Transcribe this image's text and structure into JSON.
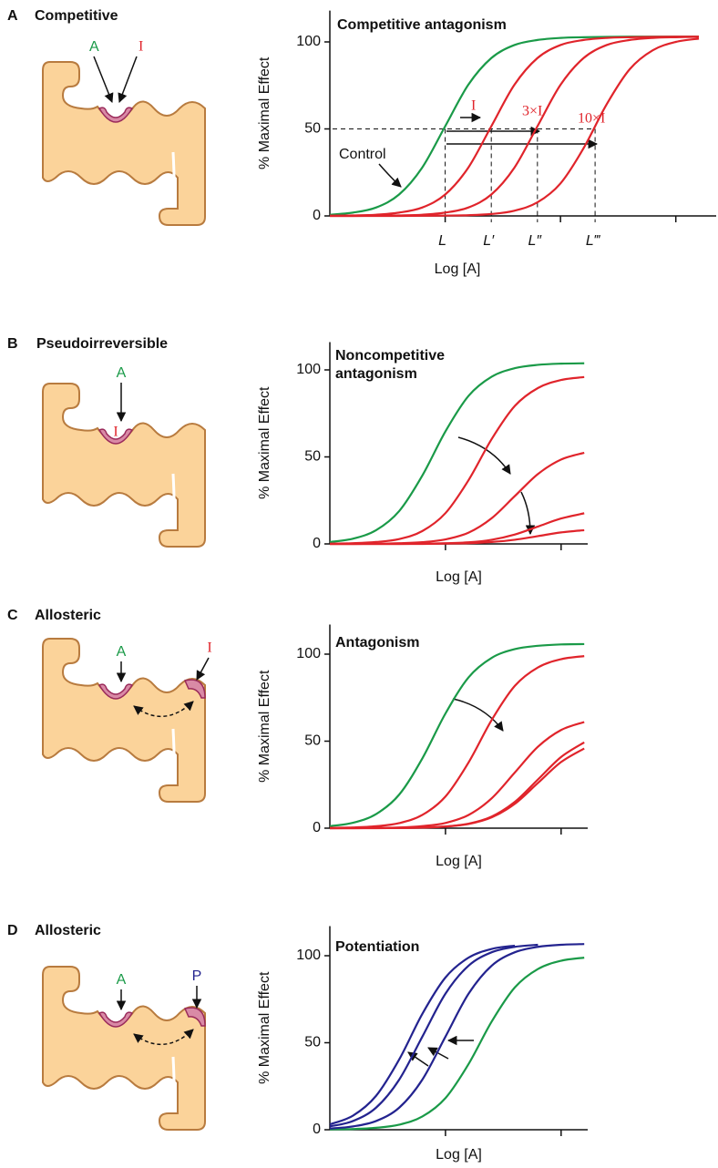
{
  "panels": [
    {
      "letter": "A",
      "title": "Competitive",
      "labels": [
        "A",
        "I"
      ]
    },
    {
      "letter": "B",
      "title": "Pseudoirreversible",
      "labels": [
        "A",
        "I"
      ]
    },
    {
      "letter": "C",
      "title": "Allosteric",
      "labels": [
        "A",
        "I"
      ]
    },
    {
      "letter": "D",
      "title": "Allosteric",
      "labels": [
        "A",
        "P"
      ]
    }
  ],
  "chart_data": [
    {
      "type": "line",
      "title": [
        "Competitive antagonism"
      ],
      "ylabel": "% Maximal Effect",
      "xlabel": "Log [A]",
      "x": [
        0,
        0.2,
        0.4,
        0.6,
        0.8,
        1.0,
        1.2,
        1.4,
        1.6,
        1.8,
        2.0,
        2.2,
        2.4,
        2.6,
        2.8,
        3.0,
        3.2
      ],
      "xlim": [
        0,
        3.35
      ],
      "xtick_marks": [
        1,
        2,
        3
      ],
      "ylim": [
        0,
        118
      ],
      "yticks": [
        0,
        50,
        100
      ],
      "series": [
        {
          "color": "#1a9a48",
          "values": [
            0.7,
            1.9,
            4.8,
            12.3,
            27.7,
            51.5,
            75.3,
            90.7,
            98.2,
            101.1,
            102.3,
            102.7,
            102.9,
            103,
            103,
            103,
            103
          ]
        },
        {
          "color": "#e0242b",
          "values": [
            0.1,
            0.3,
            0.7,
            1.9,
            4.8,
            12.3,
            27.7,
            51.5,
            75.3,
            90.7,
            98.2,
            101.1,
            102.3,
            102.7,
            102.9,
            103,
            103
          ]
        },
        {
          "color": "#e0242b",
          "values": [
            0,
            0,
            0.1,
            0.3,
            0.7,
            1.9,
            4.8,
            12.3,
            27.7,
            51.5,
            75.3,
            90.7,
            98.2,
            101.1,
            102.3,
            102.7,
            102.9
          ]
        },
        {
          "color": "#e0242b",
          "values": [
            0,
            0,
            0,
            0,
            0.1,
            0.2,
            0.4,
            1.1,
            3,
            7.8,
            18.7,
            38.9,
            64.1,
            84.3,
            95.2,
            100,
            101.9
          ]
        }
      ],
      "marker_level": 50,
      "markers": [
        {
          "value": 1.0,
          "label": "L"
        },
        {
          "value": 1.4,
          "label": "L′"
        },
        {
          "value": 1.8,
          "label": "L″"
        },
        {
          "value": 2.3,
          "label": "L‴"
        }
      ],
      "annotations": [
        "I",
        "3×I",
        "10×I",
        "Control"
      ]
    },
    {
      "type": "line",
      "title": [
        "Noncompetitive",
        "antagonism"
      ],
      "ylabel": "% Maximal Effect",
      "xlabel": "Log [A]",
      "x": [
        0,
        0.2,
        0.4,
        0.6,
        0.8,
        1.0,
        1.2,
        1.4,
        1.6,
        1.8,
        2.0,
        2.2
      ],
      "xlim": [
        0,
        2.23
      ],
      "xtick_marks": [
        1,
        2
      ],
      "ylim": [
        0,
        116
      ],
      "yticks": [
        0,
        50,
        100
      ],
      "series": [
        {
          "color": "#1a9a48",
          "values": [
            1.1,
            3,
            7.9,
            18.9,
            39.3,
            64.7,
            85.1,
            96.1,
            101,
            102.9,
            103.6,
            103.8
          ]
        },
        {
          "color": "#e0242b",
          "values": [
            0.1,
            0.4,
            1.1,
            2.8,
            7.4,
            17.7,
            36.7,
            60.3,
            79.3,
            89.6,
            94.2,
            95.9
          ]
        },
        {
          "color": "#e0242b",
          "values": [
            0,
            0,
            0.1,
            0.4,
            1,
            2.6,
            6.5,
            14.8,
            27.5,
            40.2,
            48.5,
            52.4
          ]
        },
        {
          "color": "#e0242b",
          "values": [
            0,
            0,
            0,
            0,
            0.1,
            0.4,
            0.9,
            2.4,
            5.4,
            10,
            14.6,
            17.6
          ]
        },
        {
          "color": "#e0242b",
          "values": [
            0,
            0,
            0,
            0,
            0,
            0.2,
            0.4,
            1.1,
            2.4,
            4.5,
            6.6,
            7.9
          ]
        }
      ]
    },
    {
      "type": "line",
      "title": [
        "Antagonism"
      ],
      "ylabel": "% Maximal Effect",
      "xlabel": "Log [A]",
      "x": [
        0,
        0.2,
        0.4,
        0.6,
        0.8,
        1.0,
        1.2,
        1.4,
        1.6,
        1.8,
        2.0,
        2.2
      ],
      "xlim": [
        0,
        2.23
      ],
      "xtick_marks": [
        1,
        2
      ],
      "ylim": [
        0,
        117
      ],
      "yticks": [
        0,
        50,
        100
      ],
      "series": [
        {
          "color": "#1a9a48",
          "values": [
            1.2,
            3.1,
            8.1,
            19.3,
            40.1,
            65.9,
            86.7,
            97.9,
            102.9,
            104.8,
            105.6,
            105.8
          ]
        },
        {
          "color": "#e0242b",
          "values": [
            0.2,
            0.4,
            1.1,
            2.9,
            7.6,
            18.2,
            37.8,
            62.2,
            81.8,
            92.4,
            97.1,
            98.9
          ]
        },
        {
          "color": "#e0242b",
          "values": [
            0,
            0.1,
            0.2,
            0.4,
            1.2,
            3,
            7.6,
            17.2,
            32,
            46.8,
            56.4,
            61
          ]
        },
        {
          "color": "#e0242b",
          "values": [
            0,
            0,
            0.1,
            0.1,
            0.4,
            1,
            2.6,
            6.7,
            15.1,
            28,
            40.9,
            49.3
          ]
        },
        {
          "color": "#e0242b",
          "values": [
            0,
            0,
            0,
            0.1,
            0.3,
            0.9,
            2.4,
            6.2,
            14,
            26,
            38,
            45.8
          ]
        }
      ]
    },
    {
      "type": "line",
      "title": [
        "Potentiation"
      ],
      "ylabel": "% Maximal Effect",
      "xlabel": "Log [A]",
      "x": [
        0,
        0.2,
        0.4,
        0.6,
        0.8,
        1.0,
        1.2,
        1.4,
        1.6,
        1.8,
        2.0,
        2.2
      ],
      "xlim": [
        0,
        2.23
      ],
      "xtick_marks": [
        1,
        2
      ],
      "ylim": [
        0,
        117
      ],
      "yticks": [
        0,
        50,
        100
      ],
      "series": [
        {
          "color": "#1a9a48",
          "values": [
            0.2,
            0.4,
            1.1,
            2.9,
            7.6,
            18.2,
            37.8,
            62.2,
            81.8,
            92.4,
            97.1,
            98.9
          ]
        },
        {
          "color": "#23238f",
          "values": [
            0.7,
            1.9,
            5,
            12.7,
            28.8,
            53.5,
            78.2,
            94.3,
            102,
            105.1,
            106.3,
            106.7
          ]
        },
        {
          "color": "#23238f",
          "values": [
            1.9,
            5,
            12.7,
            28.8,
            53.5,
            78.2,
            94.3,
            102,
            105.1,
            106.3,
            null,
            null
          ]
        },
        {
          "color": "#23238f",
          "values": [
            3.1,
            8.1,
            19.5,
            40.4,
            66.6,
            87.5,
            98.9,
            103.9,
            105.8,
            null,
            null,
            null
          ]
        }
      ]
    }
  ]
}
